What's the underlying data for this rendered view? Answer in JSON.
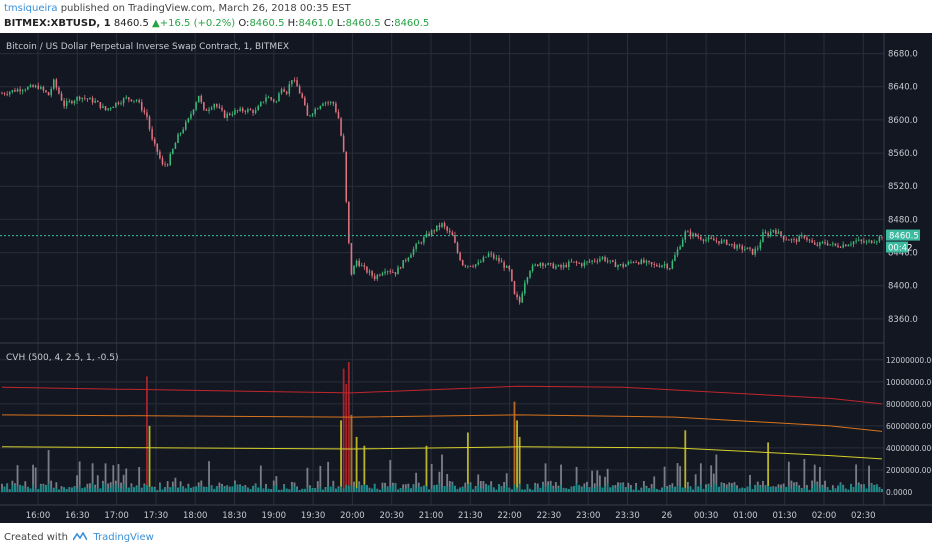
{
  "header": {
    "author": "tmsiqueira",
    "published": "published on TradingView.com, March 26, 2018 00:35 EST",
    "symbol": "BITMEX:XBTUSD, 1",
    "last": "8460.5",
    "change": "+16.5 (+0.2%)",
    "o_label": "O:",
    "o": "8460.5",
    "h_label": "H:",
    "h": "8461.0",
    "l_label": "L:",
    "l": "8460.5",
    "c_label": "C:",
    "c": "8460.5"
  },
  "footer": {
    "created": "Created with",
    "brand": "TradingView"
  },
  "colors": {
    "background": "#131722",
    "grid": "#2a2e39",
    "up": "#3cba78",
    "down": "#e0737f",
    "price_line": "#3cba9f",
    "red_band": "#c0262d",
    "orange_band": "#d8731d",
    "yellow_band": "#d6cf2a",
    "volume": "#8c8f99",
    "volume_base": "#1d8a8a",
    "axis_text": "#c8cad0"
  },
  "chart_data": [
    {
      "type": "candlestick",
      "title": "Bitcoin / US Dollar Perpetual Inverse Swap Contract, 1, BITMEX",
      "x_ticks": [
        "16:00",
        "16:30",
        "17:00",
        "17:30",
        "18:00",
        "18:30",
        "19:00",
        "19:30",
        "20:00",
        "20:30",
        "21:00",
        "21:30",
        "22:00",
        "22:30",
        "23:00",
        "23:30",
        "26",
        "00:30",
        "01:00",
        "01:30",
        "02:00",
        "02:30"
      ],
      "y_ticks": [
        "8680.0",
        "8640.0",
        "8600.0",
        "8560.0",
        "8520.0",
        "8480.0",
        "8440.0",
        "8400.0",
        "8360.0"
      ],
      "ylim": [
        8343,
        8700
      ],
      "last_price": "8460.5",
      "countdown": "00:42",
      "close_path": [
        [
          0,
          8632
        ],
        [
          8,
          8638
        ],
        [
          14,
          8640
        ],
        [
          18,
          8630
        ],
        [
          20,
          8646
        ],
        [
          24,
          8618
        ],
        [
          30,
          8628
        ],
        [
          36,
          8622
        ],
        [
          40,
          8612
        ],
        [
          44,
          8620
        ],
        [
          48,
          8626
        ],
        [
          52,
          8624
        ],
        [
          56,
          8604
        ],
        [
          58,
          8575
        ],
        [
          60,
          8562
        ],
        [
          62,
          8545
        ],
        [
          64,
          8548
        ],
        [
          68,
          8580
        ],
        [
          72,
          8600
        ],
        [
          76,
          8630
        ],
        [
          78,
          8610
        ],
        [
          82,
          8620
        ],
        [
          86,
          8605
        ],
        [
          90,
          8610
        ],
        [
          94,
          8612
        ],
        [
          98,
          8610
        ],
        [
          102,
          8628
        ],
        [
          106,
          8622
        ],
        [
          108,
          8640
        ],
        [
          110,
          8634
        ],
        [
          112,
          8650
        ],
        [
          114,
          8640
        ],
        [
          116,
          8626
        ],
        [
          118,
          8604
        ],
        [
          120,
          8610
        ],
        [
          124,
          8622
        ],
        [
          128,
          8620
        ],
        [
          130,
          8602
        ],
        [
          132,
          8560
        ],
        [
          133,
          8500
        ],
        [
          134,
          8450
        ],
        [
          135,
          8415
        ],
        [
          137,
          8430
        ],
        [
          140,
          8420
        ],
        [
          144,
          8410
        ],
        [
          148,
          8420
        ],
        [
          152,
          8416
        ],
        [
          156,
          8432
        ],
        [
          160,
          8448
        ],
        [
          164,
          8460
        ],
        [
          168,
          8470
        ],
        [
          170,
          8474
        ],
        [
          172,
          8466
        ],
        [
          174,
          8460
        ],
        [
          176,
          8440
        ],
        [
          178,
          8426
        ],
        [
          180,
          8425
        ],
        [
          184,
          8426
        ],
        [
          188,
          8438
        ],
        [
          192,
          8430
        ],
        [
          196,
          8418
        ],
        [
          198,
          8388
        ],
        [
          200,
          8380
        ],
        [
          202,
          8406
        ],
        [
          204,
          8420
        ],
        [
          208,
          8428
        ],
        [
          212,
          8424
        ],
        [
          216,
          8422
        ],
        [
          220,
          8428
        ],
        [
          224,
          8426
        ],
        [
          228,
          8430
        ],
        [
          232,
          8434
        ],
        [
          236,
          8426
        ],
        [
          240,
          8424
        ],
        [
          244,
          8430
        ],
        [
          248,
          8428
        ],
        [
          252,
          8424
        ],
        [
          256,
          8426
        ],
        [
          258,
          8422
        ],
        [
          260,
          8436
        ],
        [
          262,
          8450
        ],
        [
          264,
          8464
        ],
        [
          268,
          8460
        ],
        [
          272,
          8456
        ],
        [
          276,
          8454
        ],
        [
          280,
          8452
        ],
        [
          284,
          8446
        ],
        [
          288,
          8444
        ],
        [
          290,
          8440
        ],
        [
          292,
          8446
        ],
        [
          294,
          8462
        ],
        [
          296,
          8462
        ],
        [
          298,
          8468
        ],
        [
          302,
          8458
        ],
        [
          306,
          8454
        ],
        [
          310,
          8460
        ],
        [
          314,
          8448
        ],
        [
          318,
          8452
        ],
        [
          322,
          8448
        ],
        [
          326,
          8450
        ],
        [
          330,
          8454
        ],
        [
          334,
          8452
        ],
        [
          338,
          8456
        ],
        [
          340,
          8460
        ]
      ]
    },
    {
      "type": "bar",
      "title": "CVH (500, 4, 2.5, 1, -0.5)",
      "y_ticks": [
        "12000000.0000",
        "10000000.0000",
        "8000000.0000",
        "6000000.0000",
        "4000000.0000",
        "2000000.0000",
        "0.0000"
      ],
      "ylim": [
        -1000000,
        12800000
      ],
      "bands": [
        {
          "name": "red",
          "points": [
            [
              0,
              9500000
            ],
            [
              135,
              9000000
            ],
            [
              200,
              9600000
            ],
            [
              240,
              9500000
            ],
            [
              320,
              8500000
            ],
            [
              340,
              8000000
            ]
          ]
        },
        {
          "name": "orange",
          "points": [
            [
              0,
              7000000
            ],
            [
              135,
              6800000
            ],
            [
              200,
              7000000
            ],
            [
              260,
              6800000
            ],
            [
              320,
              6000000
            ],
            [
              340,
              5500000
            ]
          ]
        },
        {
          "name": "yellow",
          "points": [
            [
              0,
              4100000
            ],
            [
              135,
              3900000
            ],
            [
              200,
              4100000
            ],
            [
              260,
              4000000
            ],
            [
              320,
              3300000
            ],
            [
              340,
              3000000
            ]
          ]
        }
      ],
      "spikes": [
        [
          18,
          3800000
        ],
        [
          40,
          2600000
        ],
        [
          56,
          10500000
        ],
        [
          57,
          6000000
        ],
        [
          80,
          2800000
        ],
        [
          100,
          2400000
        ],
        [
          118,
          2200000
        ],
        [
          131,
          6500000
        ],
        [
          132,
          11200000
        ],
        [
          133,
          9800000
        ],
        [
          134,
          11800000
        ],
        [
          135,
          7000000
        ],
        [
          137,
          5000000
        ],
        [
          140,
          4200000
        ],
        [
          150,
          2900000
        ],
        [
          164,
          4200000
        ],
        [
          170,
          3400000
        ],
        [
          180,
          5400000
        ],
        [
          198,
          8200000
        ],
        [
          199,
          6500000
        ],
        [
          200,
          5000000
        ],
        [
          210,
          2600000
        ],
        [
          234,
          2100000
        ],
        [
          256,
          2300000
        ],
        [
          264,
          5600000
        ],
        [
          276,
          3400000
        ],
        [
          296,
          4500000
        ],
        [
          310,
          3000000
        ],
        [
          330,
          2500000
        ]
      ]
    }
  ]
}
